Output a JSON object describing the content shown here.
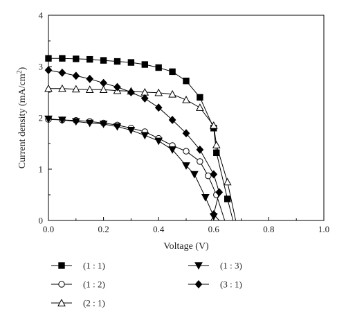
{
  "chart_data": {
    "type": "line",
    "xlabel": "Voltage (V)",
    "ylabel_main": "Current density (mA/cm",
    "ylabel_sup": "2",
    "ylabel_tail": ")",
    "xlim": [
      0.0,
      1.0
    ],
    "ylim": [
      0,
      4
    ],
    "x_ticks": [
      "0.0",
      "0.2",
      "0.4",
      "0.6",
      "0.8",
      "1.0"
    ],
    "y_ticks": [
      "0",
      "1",
      "2",
      "3",
      "4"
    ],
    "grid": false,
    "legend_position": "bottom",
    "series": [
      {
        "name": "(1 : 1)",
        "marker": "square-filled",
        "points": [
          [
            0.0,
            3.16
          ],
          [
            0.05,
            3.16
          ],
          [
            0.1,
            3.15
          ],
          [
            0.15,
            3.14
          ],
          [
            0.2,
            3.12
          ],
          [
            0.25,
            3.1
          ],
          [
            0.3,
            3.08
          ],
          [
            0.35,
            3.04
          ],
          [
            0.4,
            2.98
          ],
          [
            0.45,
            2.9
          ],
          [
            0.5,
            2.72
          ],
          [
            0.55,
            2.4
          ],
          [
            0.6,
            1.8
          ],
          [
            0.61,
            1.32
          ],
          [
            0.65,
            0.42
          ],
          [
            0.67,
            0.0
          ]
        ]
      },
      {
        "name": "(1 : 2)",
        "marker": "circle-open",
        "points": [
          [
            0.0,
            1.97
          ],
          [
            0.05,
            1.96
          ],
          [
            0.1,
            1.95
          ],
          [
            0.15,
            1.93
          ],
          [
            0.2,
            1.9
          ],
          [
            0.25,
            1.86
          ],
          [
            0.3,
            1.8
          ],
          [
            0.35,
            1.73
          ],
          [
            0.4,
            1.6
          ],
          [
            0.45,
            1.46
          ],
          [
            0.5,
            1.35
          ],
          [
            0.55,
            1.15
          ],
          [
            0.58,
            0.87
          ],
          [
            0.61,
            0.5
          ],
          [
            0.64,
            0.0
          ]
        ]
      },
      {
        "name": "(2 : 1)",
        "marker": "triangle-up-open",
        "points": [
          [
            0.0,
            2.57
          ],
          [
            0.05,
            2.57
          ],
          [
            0.1,
            2.56
          ],
          [
            0.15,
            2.55
          ],
          [
            0.2,
            2.55
          ],
          [
            0.25,
            2.53
          ],
          [
            0.3,
            2.52
          ],
          [
            0.35,
            2.5
          ],
          [
            0.4,
            2.49
          ],
          [
            0.45,
            2.46
          ],
          [
            0.5,
            2.35
          ],
          [
            0.55,
            2.2
          ],
          [
            0.6,
            1.85
          ],
          [
            0.61,
            1.47
          ],
          [
            0.65,
            0.75
          ],
          [
            0.68,
            0.0
          ]
        ]
      },
      {
        "name": "(1 : 3)",
        "marker": "triangle-down-filled",
        "points": [
          [
            0.0,
            1.98
          ],
          [
            0.05,
            1.96
          ],
          [
            0.1,
            1.93
          ],
          [
            0.15,
            1.9
          ],
          [
            0.2,
            1.88
          ],
          [
            0.25,
            1.83
          ],
          [
            0.3,
            1.76
          ],
          [
            0.35,
            1.66
          ],
          [
            0.4,
            1.55
          ],
          [
            0.45,
            1.38
          ],
          [
            0.5,
            1.07
          ],
          [
            0.53,
            0.9
          ],
          [
            0.57,
            0.45
          ],
          [
            0.6,
            0.08
          ],
          [
            0.59,
            0.0
          ]
        ]
      },
      {
        "name": "(3 : 1)",
        "marker": "diamond-filled",
        "points": [
          [
            0.0,
            2.93
          ],
          [
            0.05,
            2.88
          ],
          [
            0.1,
            2.82
          ],
          [
            0.15,
            2.76
          ],
          [
            0.2,
            2.68
          ],
          [
            0.25,
            2.6
          ],
          [
            0.3,
            2.5
          ],
          [
            0.35,
            2.38
          ],
          [
            0.4,
            2.2
          ],
          [
            0.45,
            1.96
          ],
          [
            0.5,
            1.7
          ],
          [
            0.55,
            1.38
          ],
          [
            0.6,
            0.9
          ],
          [
            0.62,
            0.55
          ],
          [
            0.6,
            0.12
          ],
          [
            0.62,
            0.0
          ]
        ]
      }
    ]
  }
}
